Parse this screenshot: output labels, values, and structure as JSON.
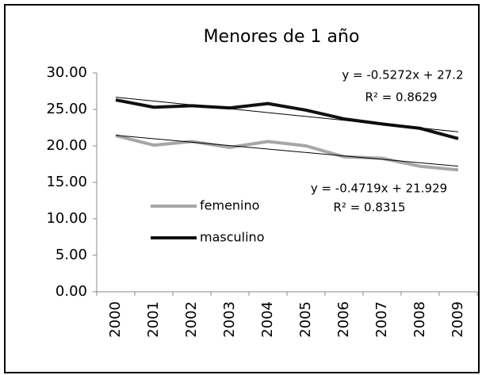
{
  "chart_data": {
    "type": "line",
    "title": "Menores de 1 año",
    "categories": [
      "2000",
      "2001",
      "2002",
      "2003",
      "2004",
      "2005",
      "2006",
      "2007",
      "2008",
      "2009"
    ],
    "series": [
      {
        "name": "femenino",
        "color": "#a6a6a6",
        "values": [
          21.4,
          20.1,
          20.6,
          19.8,
          20.6,
          20.0,
          18.5,
          18.3,
          17.2,
          16.7
        ]
      },
      {
        "name": "masculino",
        "color": "#111111",
        "values": [
          26.3,
          25.3,
          25.5,
          25.2,
          25.8,
          24.9,
          23.7,
          23.0,
          22.4,
          21.0
        ]
      }
    ],
    "trendlines": [
      {
        "equation": "y = -0.4719x + 21.929",
        "r2": "R² = 0.8315",
        "slope": -0.4719,
        "intercept": 21.929
      },
      {
        "equation": "y = -0.5272x + 27.2",
        "r2": "R² = 0.8629",
        "slope": -0.5272,
        "intercept": 27.2
      }
    ],
    "ylim": [
      0,
      30
    ],
    "yticks": [
      {
        "value": 0,
        "label": "0.00"
      },
      {
        "value": 5,
        "label": "5.00"
      },
      {
        "value": 10,
        "label": "10.00"
      },
      {
        "value": 15,
        "label": "15.00"
      },
      {
        "value": 20,
        "label": "20.00"
      },
      {
        "value": 25,
        "label": "25.00"
      },
      {
        "value": 30,
        "label": "30.00"
      }
    ],
    "grid": false
  }
}
